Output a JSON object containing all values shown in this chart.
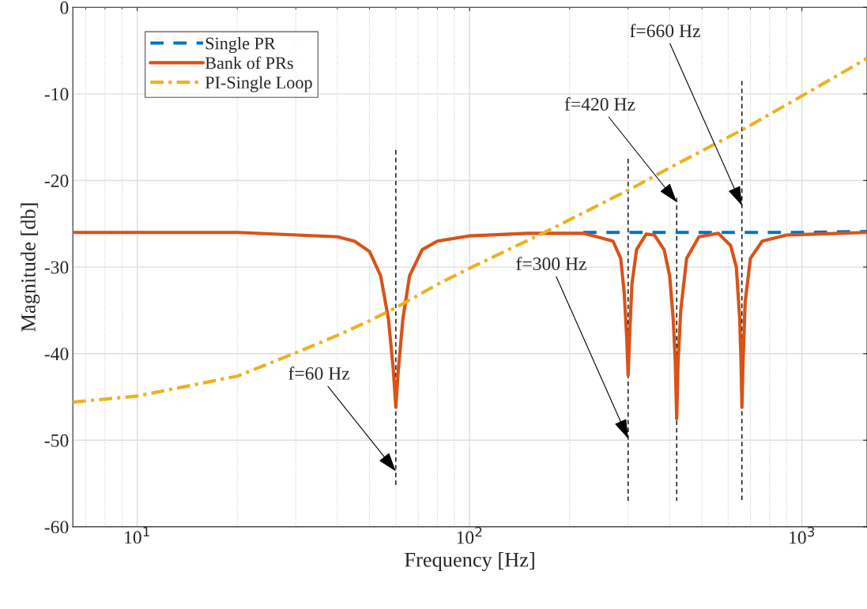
{
  "chart_data": {
    "type": "line",
    "xlabel": "Frequency [Hz]",
    "ylabel": "Magnitude [db]",
    "log": "x",
    "xlim": [
      6.4,
      1570
    ],
    "ylim": [
      -60,
      0
    ],
    "xticks": [
      {
        "value": 10,
        "label": "10$^{1}$"
      },
      {
        "value": 100,
        "label": "10$^{2}$"
      },
      {
        "value": 1000,
        "label": "10$^{3}$"
      }
    ],
    "yticks": [
      -60,
      -50,
      -40,
      -30,
      -20,
      -10,
      0
    ],
    "grid": true,
    "legend": "top left",
    "series": [
      {
        "name": "Single PR",
        "color": "#0072bd",
        "line_style": "dashed",
        "x": [
          220,
          300,
          1000,
          1570
        ],
        "values": [
          -26,
          -26,
          -26,
          -25.9
        ]
      },
      {
        "name": "Bank of PRs",
        "color": "#d95319",
        "line_style": "solid",
        "x": [
          6.4,
          20,
          40,
          45,
          50,
          54,
          57,
          59,
          60,
          61,
          63,
          66,
          72,
          80,
          100,
          150,
          220,
          270,
          285,
          292,
          297,
          300,
          303,
          308,
          318,
          340,
          360,
          385,
          400,
          410,
          416,
          420,
          424,
          432,
          450,
          490,
          560,
          610,
          635,
          650,
          656,
          660,
          665,
          675,
          700,
          760,
          900,
          1570
        ],
        "values": [
          -26,
          -26,
          -26.5,
          -27,
          -28.2,
          -31,
          -36,
          -42,
          -46.2,
          -42,
          -36,
          -31,
          -28,
          -27,
          -26.4,
          -26.1,
          -26.1,
          -27,
          -29,
          -33,
          -38,
          -42.5,
          -38,
          -32,
          -28,
          -26.2,
          -26.3,
          -28,
          -31,
          -36,
          -41,
          -47.5,
          -41,
          -35,
          -29,
          -26.5,
          -26.1,
          -27.5,
          -30,
          -36,
          -41,
          -46.2,
          -41,
          -34,
          -29,
          -27,
          -26.3,
          -26
        ]
      },
      {
        "name": "PI-Single Loop",
        "color": "#edb120",
        "line_style": "dashdot",
        "x": [
          6.4,
          10,
          20,
          30,
          40,
          50,
          60,
          80,
          103,
          166,
          301,
          425,
          673,
          1004,
          1570
        ],
        "values": [
          -45.6,
          -44.9,
          -42.6,
          -39.9,
          -37.9,
          -36.2,
          -34.7,
          -32,
          -29.9,
          -26.1,
          -21.1,
          -18,
          -14,
          -10.2,
          -5.9
        ]
      },
      {
        "color": "#000000",
        "line_style": "dashed",
        "x": [
          60,
          60
        ],
        "values": [
          -16.5,
          -55.5
        ]
      },
      {
        "color": "#000000",
        "line_style": "dashed",
        "x": [
          300,
          300
        ],
        "values": [
          -17.5,
          -57
        ]
      },
      {
        "color": "#000000",
        "line_style": "dashed",
        "x": [
          420,
          420
        ],
        "values": [
          -22,
          -57
        ]
      },
      {
        "color": "#000000",
        "line_style": "dashed",
        "x": [
          660,
          660
        ],
        "values": [
          -8.5,
          -57
        ]
      }
    ],
    "annotations": [
      {
        "text": "f=60 Hz",
        "x": 60,
        "y": -53.6
      },
      {
        "text": "f=300 Hz",
        "x": 300,
        "y": -49.8
      },
      {
        "text": "f=420 Hz",
        "x": 420,
        "y": -22.5
      },
      {
        "text": "f=660 Hz",
        "x": 660,
        "y": -22.9
      }
    ]
  }
}
